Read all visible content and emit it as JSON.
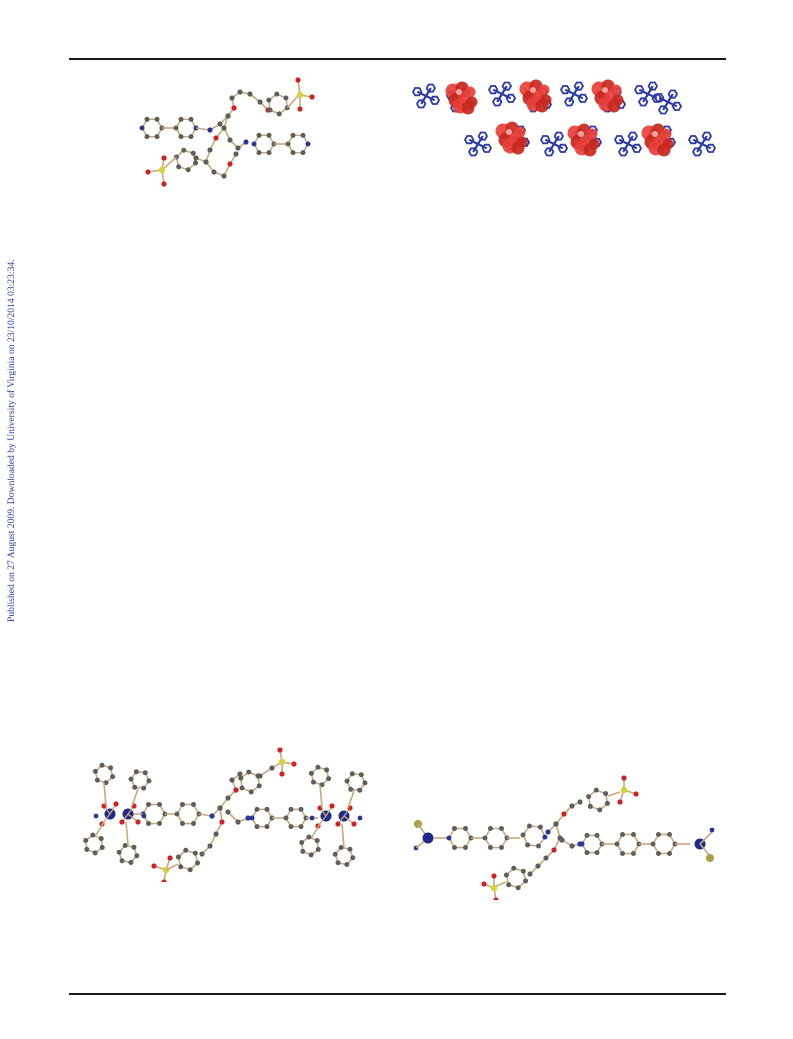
{
  "sidebar": {
    "text": "Published on 27 August 2009. Downloaded by University of Virginia on 23/10/2014 03:23:34."
  },
  "figures": [
    {
      "id": "a",
      "kind": "molecule-ball-and-stick"
    },
    {
      "id": "b",
      "kind": "crystal-packing-spacefill"
    },
    {
      "id": "c",
      "kind": "coordination-complex-ball-and-stick"
    },
    {
      "id": "d",
      "kind": "coordination-complex-ball-and-stick"
    }
  ],
  "colors": {
    "carbon": "#5e5e5e",
    "bond": "#c9a97c",
    "oxygen": "#d42020",
    "nitrogen": "#2a3598",
    "sulfur": "#d8d23a",
    "metal": "#1e2a88",
    "halide": "#a8a040",
    "packing_blue": "#2d3aa8",
    "packing_red": "#e8403a"
  }
}
